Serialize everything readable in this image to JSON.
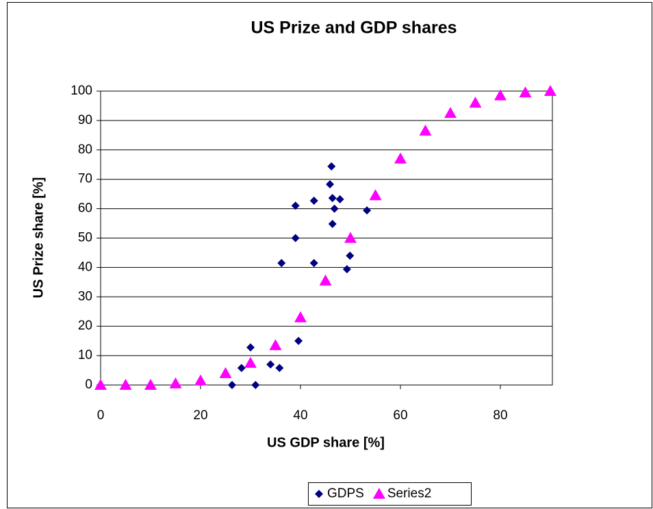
{
  "chart_data": {
    "type": "scatter",
    "title": "US Prize and GDP shares",
    "x_label": "US GDP share [%]",
    "y_label": "US Prize share [%]",
    "xlim": [
      0,
      90
    ],
    "xticks": [
      0,
      20,
      40,
      60,
      80
    ],
    "ylim": [
      0,
      100
    ],
    "yticks": [
      0,
      10,
      20,
      30,
      40,
      50,
      60,
      70,
      80,
      90,
      100
    ],
    "grid": true,
    "legend": "bottom",
    "series": [
      {
        "name": "GDPS",
        "color": "#000080",
        "marker": "diamond",
        "x": [
          26.3,
          31.0,
          28.2,
          30.0,
          34.0,
          35.8,
          36.2,
          39.6,
          39.0,
          39.0,
          42.7,
          42.7,
          45.9,
          46.2,
          46.4,
          46.8,
          46.4,
          47.9,
          49.3,
          49.9,
          53.3
        ],
        "values": [
          0,
          0,
          5.8,
          12.8,
          7.0,
          5.8,
          41.5,
          15,
          50,
          61,
          62.7,
          41.5,
          68.3,
          74.4,
          63.6,
          60,
          54.8,
          63.2,
          39.4,
          44,
          59.4
        ]
      },
      {
        "name": "Series2",
        "color": "#ff00ff",
        "marker": "triangle",
        "x": [
          0,
          5,
          10,
          15,
          20,
          25,
          30,
          35,
          40,
          45,
          50,
          55,
          60,
          65,
          70,
          75,
          80,
          85,
          90
        ],
        "values": [
          0,
          0,
          0,
          0.5,
          1.5,
          4,
          7.5,
          13.5,
          23,
          35.5,
          50,
          64.5,
          77,
          86.5,
          92.5,
          96,
          98.5,
          99.5,
          100
        ]
      }
    ]
  }
}
